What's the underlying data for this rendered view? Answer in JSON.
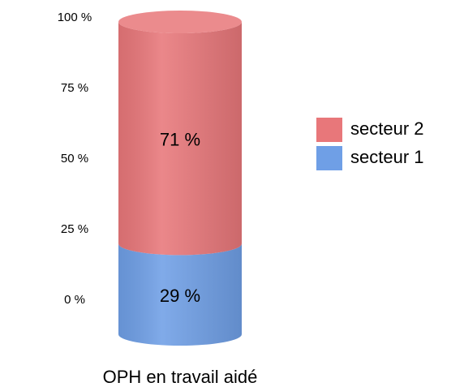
{
  "chart_data": {
    "type": "bar",
    "stacked": true,
    "categories": [
      "OPH en travail aidé"
    ],
    "series": [
      {
        "name": "secteur 1",
        "color": "#6f9fe6",
        "values": [
          29
        ],
        "value_labels": [
          "29 %"
        ]
      },
      {
        "name": "secteur 2",
        "color": "#e8777a",
        "values": [
          71
        ],
        "value_labels": [
          "71 %"
        ]
      }
    ],
    "ylim": [
      0,
      100
    ],
    "yticks": [
      {
        "value": 0,
        "label": "0 %"
      },
      {
        "value": 25,
        "label": "25 %"
      },
      {
        "value": 50,
        "label": "50 %"
      },
      {
        "value": 75,
        "label": "75 %"
      },
      {
        "value": 100,
        "label": "100 %"
      }
    ],
    "legend": "right"
  }
}
